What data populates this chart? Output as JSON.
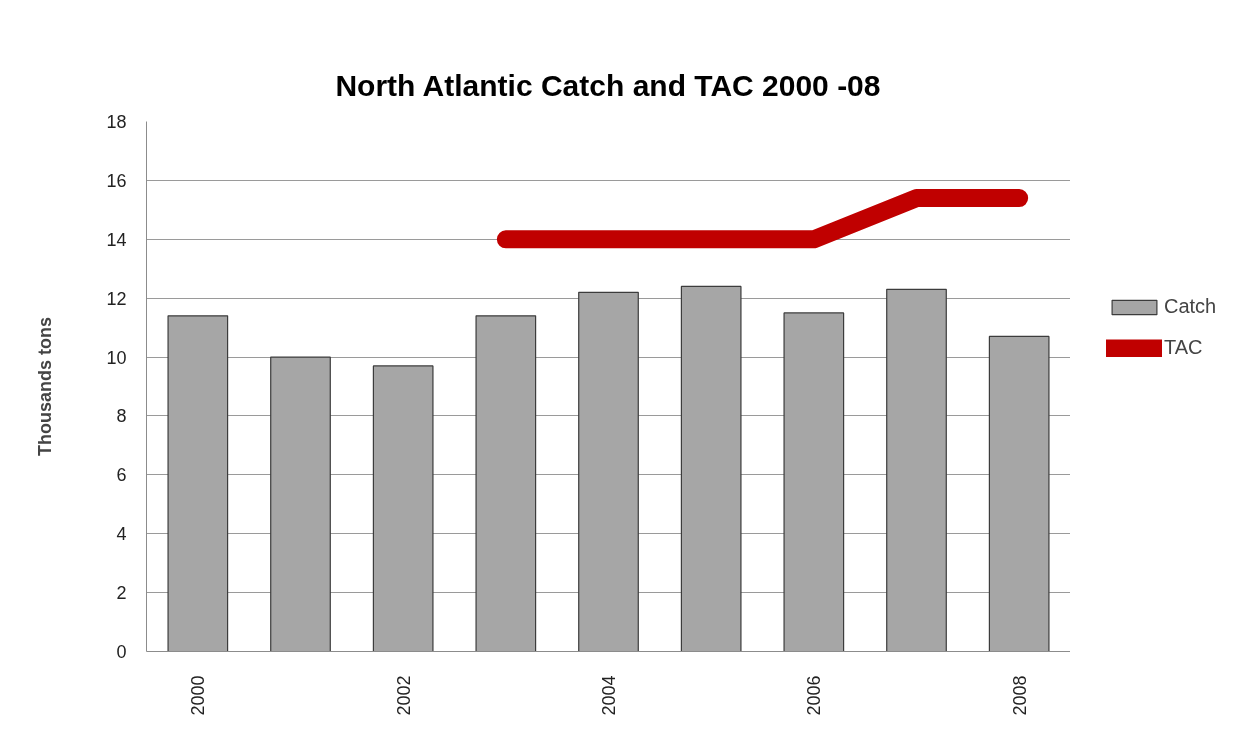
{
  "chart_data": {
    "type": "bar",
    "title": "North Atlantic Catch and TAC 2000 -08",
    "ylabel": "Thousands tons",
    "categories": [
      "2000",
      null,
      "2002",
      null,
      "2004",
      null,
      "2006",
      null,
      "2008"
    ],
    "series": [
      {
        "name": "Catch",
        "color": "#a6a6a6",
        "values": [
          11.4,
          10.0,
          9.7,
          11.4,
          12.2,
          12.4,
          11.5,
          12.3,
          10.7
        ]
      },
      {
        "name": "TAC",
        "type": "line",
        "color": "#c00000",
        "line_style": "solid",
        "values": [
          null,
          null,
          null,
          14.0,
          14.0,
          14.0,
          14.0,
          15.4,
          15.4
        ]
      }
    ],
    "ylim": [
      0,
      18
    ],
    "yticks": [
      0,
      2,
      4,
      6,
      8,
      10,
      12,
      14,
      16,
      18
    ],
    "grid": "y",
    "legend": "right"
  }
}
